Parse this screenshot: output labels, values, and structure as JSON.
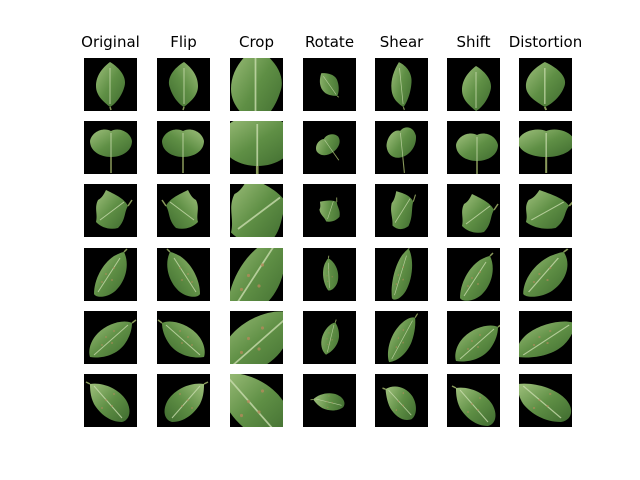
{
  "figure": {
    "background": "#ffffff",
    "tile_background": "#000000",
    "leaf_colors": {
      "dark": "#3f6b2f",
      "mid": "#5f8f45",
      "light": "#9fc07c",
      "vein": "#c9dcae"
    },
    "columns": [
      "Original",
      "Flip",
      "Crop",
      "Rotate",
      "Shear",
      "Shift",
      "Distortion"
    ],
    "row_count": 6,
    "row_leaf_shapes": [
      "heart-leaf",
      "oval-leaf-with-stem",
      "lobed-leaf",
      "elongated-leaf",
      "spotted-leaf",
      "broad-leaf"
    ]
  }
}
